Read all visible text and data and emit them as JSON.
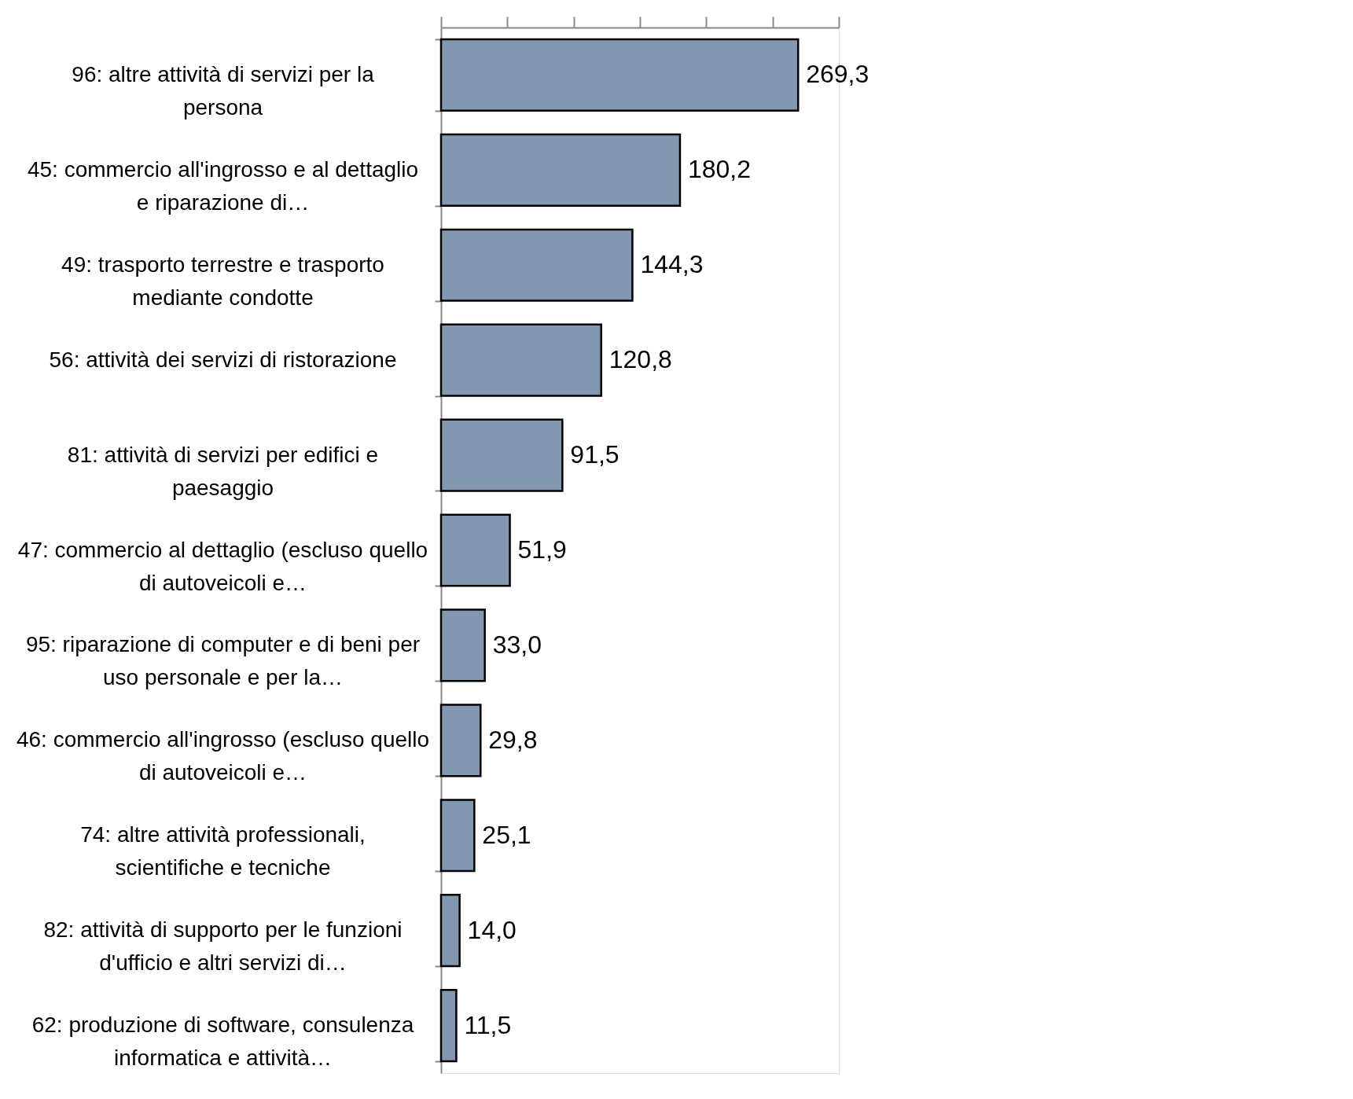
{
  "chart_data": {
    "type": "bar",
    "orientation": "horizontal",
    "categories": [
      "96: altre attività di servizi per la persona",
      "45: commercio all'ingrosso e al dettaglio e riparazione di…",
      "49: trasporto terrestre e trasporto mediante condotte",
      "56: attività dei servizi di ristorazione",
      "81: attività di servizi per edifici e paesaggio",
      "47: commercio al dettaglio (escluso quello di autoveicoli e…",
      "95: riparazione di computer e di beni per uso personale e per la…",
      "46: commercio all'ingrosso (escluso quello di autoveicoli e…",
      "74: altre attività professionali, scientifiche e tecniche",
      "82: attività di supporto per le funzioni d'ufficio e altri servizi di…",
      "62: produzione di software, consulenza informatica e attività…"
    ],
    "values": [
      269.3,
      180.2,
      144.3,
      120.8,
      91.5,
      51.9,
      33.0,
      29.8,
      25.1,
      14.0,
      11.5
    ],
    "value_labels": [
      "269,3",
      "180,2",
      "144,3",
      "120,8",
      "91,5",
      "51,9",
      "33,0",
      "29,8",
      "25,1",
      "14,0",
      "11,5"
    ],
    "color": "#8497b0",
    "xlim": [
      0,
      300
    ],
    "xticks": [
      {
        "value": 0,
        "label": null
      },
      {
        "value": 50,
        "label": null
      },
      {
        "value": 100,
        "label": null
      },
      {
        "value": 150,
        "label": null
      },
      {
        "value": 200,
        "label": null
      },
      {
        "value": 250,
        "label": null
      },
      {
        "value": 300,
        "label": null
      }
    ],
    "tick_labels": "y",
    "grid": false
  }
}
